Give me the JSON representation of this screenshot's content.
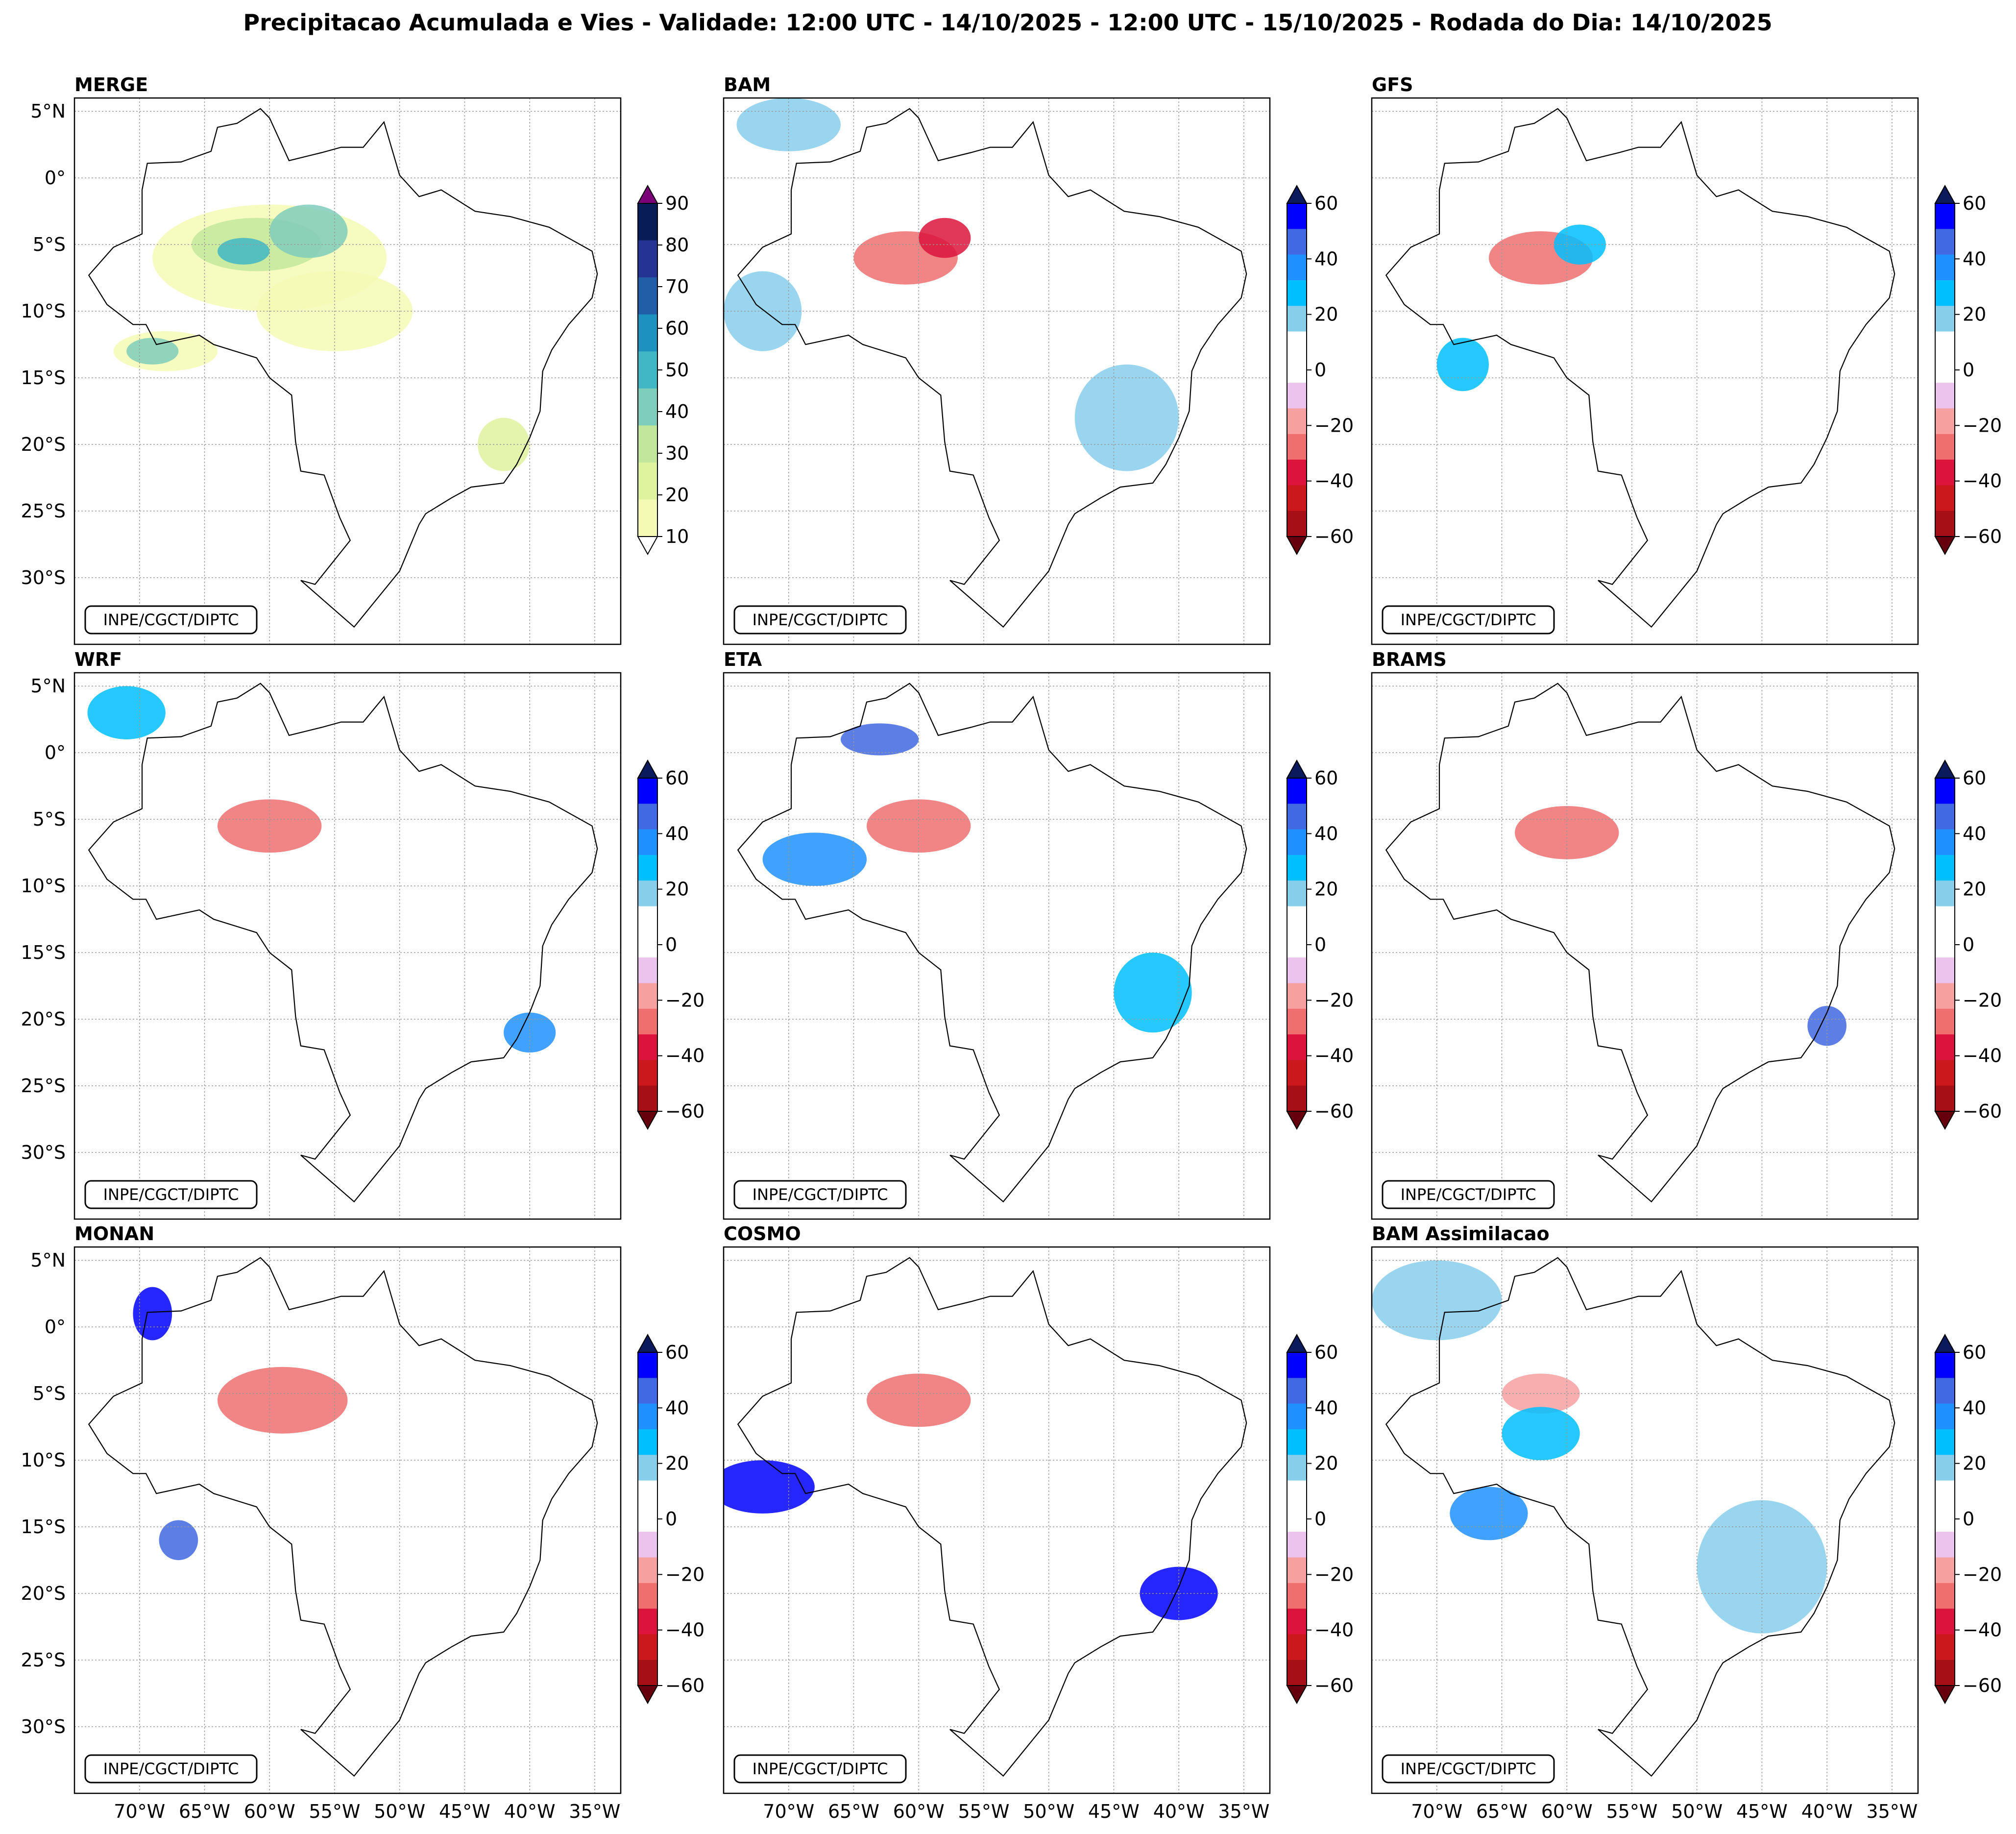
{
  "figure_title": "Precipitacao Acumulada e Vies - Validade: 12:00 UTC - 14/10/2025 - 12:00 UTC - 15/10/2025 - Rodada do Dia: 14/10/2025",
  "credit": "INPE/CGCT/DIPTC",
  "lat_tick_labels": [
    "5°N",
    "0°",
    "5°S",
    "10°S",
    "15°S",
    "20°S",
    "25°S",
    "30°S"
  ],
  "lon_tick_labels": [
    "70°W",
    "65°W",
    "60°W",
    "55°W",
    "50°W",
    "45°W",
    "40°W",
    "35°W"
  ],
  "precip_colorbar": {
    "ticks": [
      "90",
      "80",
      "70",
      "60",
      "50",
      "40",
      "30",
      "20",
      "10"
    ],
    "colors": [
      "#f4fab4",
      "#dff29e",
      "#c3e79a",
      "#7fcdbb",
      "#41b6c4",
      "#1d91c0",
      "#225ea8",
      "#253494",
      "#081d58"
    ],
    "over_color": "#7a0177",
    "under_color": "#ffffff"
  },
  "bias_colorbar": {
    "ticks": [
      "60",
      "40",
      "20",
      "0",
      "−20",
      "−40",
      "−60"
    ],
    "colors": [
      "#a50f15",
      "#cb181d",
      "#dc143c",
      "#ef6f6f",
      "#f7a0a0",
      "#ecc3ec",
      "#ffffff",
      "#ffffff",
      "#87ceeb",
      "#00bfff",
      "#1e90ff",
      "#4169e1",
      "#0000ff"
    ],
    "over_color": "#0a1a5c",
    "under_color": "#67000d"
  },
  "panels": [
    {
      "name": "MERGE",
      "type": "precip"
    },
    {
      "name": "BAM",
      "type": "bias"
    },
    {
      "name": "GFS",
      "type": "bias"
    },
    {
      "name": "WRF",
      "type": "bias"
    },
    {
      "name": "ETA",
      "type": "bias"
    },
    {
      "name": "BRAMS",
      "type": "bias"
    },
    {
      "name": "MONAN",
      "type": "bias"
    },
    {
      "name": "COSMO",
      "type": "bias"
    },
    {
      "name": "BAM Assimilacao",
      "type": "bias"
    }
  ],
  "chart_data": {
    "type": "map",
    "title": "Precipitacao Acumulada e Vies - Validade: 12:00 UTC - 14/10/2025 - 12:00 UTC - 15/10/2025 - Rodada do Dia: 14/10/2025",
    "lon_range": [
      -75,
      -33
    ],
    "lat_range": [
      -35,
      6
    ],
    "precip_levels_mm": [
      10,
      20,
      30,
      40,
      50,
      60,
      70,
      80,
      90
    ],
    "bias_levels_mm": [
      -60,
      -50,
      -40,
      -30,
      -20,
      -10,
      0,
      10,
      20,
      30,
      40,
      50,
      60
    ],
    "blobs": [
      {
        "panel": 0,
        "lon": -60,
        "lat": -6,
        "rx": 9,
        "ry": 4,
        "level": 0
      },
      {
        "panel": 0,
        "lon": -61,
        "lat": -5,
        "rx": 5,
        "ry": 2,
        "level": 2
      },
      {
        "panel": 0,
        "lon": -57,
        "lat": -4,
        "rx": 3,
        "ry": 2,
        "level": 3
      },
      {
        "panel": 0,
        "lon": -62,
        "lat": -5.5,
        "rx": 2,
        "ry": 1,
        "level": 4
      },
      {
        "panel": 0,
        "lon": -55,
        "lat": -10,
        "rx": 6,
        "ry": 3,
        "level": 0
      },
      {
        "panel": 0,
        "lon": -68,
        "lat": -13,
        "rx": 4,
        "ry": 1.5,
        "level": 0
      },
      {
        "panel": 0,
        "lon": -69,
        "lat": -13,
        "rx": 2,
        "ry": 1,
        "level": 3
      },
      {
        "panel": 0,
        "lon": -42,
        "lat": -20,
        "rx": 2,
        "ry": 2,
        "level": 1
      },
      {
        "panel": 1,
        "lon": -61,
        "lat": -6,
        "rx": 4,
        "ry": 2,
        "level": -3
      },
      {
        "panel": 1,
        "lon": -58,
        "lat": -4.5,
        "rx": 2,
        "ry": 1.5,
        "level": -4
      },
      {
        "panel": 1,
        "lon": -44,
        "lat": -18,
        "rx": 4,
        "ry": 4,
        "level": 1
      },
      {
        "panel": 1,
        "lon": -72,
        "lat": -10,
        "rx": 3,
        "ry": 3,
        "level": 1
      },
      {
        "panel": 1,
        "lon": -70,
        "lat": 4,
        "rx": 4,
        "ry": 2,
        "level": 1
      },
      {
        "panel": 2,
        "lon": -62,
        "lat": -6,
        "rx": 4,
        "ry": 2,
        "level": -3
      },
      {
        "panel": 2,
        "lon": -59,
        "lat": -5,
        "rx": 2,
        "ry": 1.5,
        "level": 2
      },
      {
        "panel": 2,
        "lon": -68,
        "lat": -14,
        "rx": 2,
        "ry": 2,
        "level": 2
      },
      {
        "panel": 3,
        "lon": -60,
        "lat": -5.5,
        "rx": 4,
        "ry": 2,
        "level": -3
      },
      {
        "panel": 3,
        "lon": -71,
        "lat": 3,
        "rx": 3,
        "ry": 2,
        "level": 2
      },
      {
        "panel": 3,
        "lon": -40,
        "lat": -21,
        "rx": 2,
        "ry": 1.5,
        "level": 3
      },
      {
        "panel": 4,
        "lon": -60,
        "lat": -5.5,
        "rx": 4,
        "ry": 2,
        "level": -3
      },
      {
        "panel": 4,
        "lon": -68,
        "lat": -8,
        "rx": 4,
        "ry": 2,
        "level": 3
      },
      {
        "panel": 4,
        "lon": -63,
        "lat": 1,
        "rx": 3,
        "ry": 1.2,
        "level": 4
      },
      {
        "panel": 4,
        "lon": -42,
        "lat": -18,
        "rx": 3,
        "ry": 3,
        "level": 2
      },
      {
        "panel": 5,
        "lon": -60,
        "lat": -6,
        "rx": 4,
        "ry": 2,
        "level": -3
      },
      {
        "panel": 5,
        "lon": -40,
        "lat": -20.5,
        "rx": 1.5,
        "ry": 1.5,
        "level": 4
      },
      {
        "panel": 6,
        "lon": -59,
        "lat": -5.5,
        "rx": 5,
        "ry": 2.5,
        "level": -3
      },
      {
        "panel": 6,
        "lon": -69,
        "lat": 1,
        "rx": 1.5,
        "ry": 2,
        "level": 5
      },
      {
        "panel": 6,
        "lon": -67,
        "lat": -16,
        "rx": 1.5,
        "ry": 1.5,
        "level": 4
      },
      {
        "panel": 7,
        "lon": -60,
        "lat": -5.5,
        "rx": 4,
        "ry": 2,
        "level": -3
      },
      {
        "panel": 7,
        "lon": -72,
        "lat": -12,
        "rx": 4,
        "ry": 2,
        "level": 5
      },
      {
        "panel": 7,
        "lon": -40,
        "lat": -20,
        "rx": 3,
        "ry": 2,
        "level": 5
      },
      {
        "panel": 8,
        "lon": -62,
        "lat": -5,
        "rx": 3,
        "ry": 1.5,
        "level": -2
      },
      {
        "panel": 8,
        "lon": -62,
        "lat": -8,
        "rx": 3,
        "ry": 2,
        "level": 2
      },
      {
        "panel": 8,
        "lon": -45,
        "lat": -18,
        "rx": 5,
        "ry": 5,
        "level": 1
      },
      {
        "panel": 8,
        "lon": -66,
        "lat": -14,
        "rx": 3,
        "ry": 2,
        "level": 3
      },
      {
        "panel": 8,
        "lon": -70,
        "lat": 2,
        "rx": 5,
        "ry": 3,
        "level": 1
      }
    ]
  }
}
